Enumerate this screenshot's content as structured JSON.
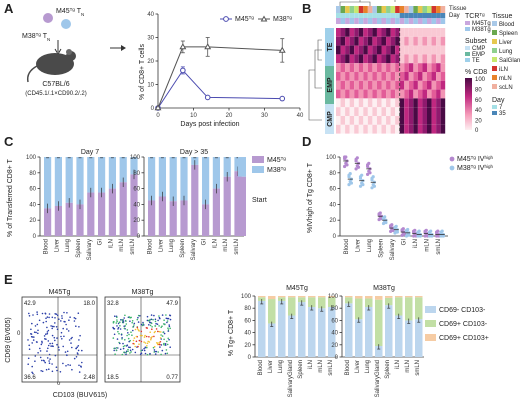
{
  "panels": {
    "A": "A",
    "B": "B",
    "C": "C",
    "D": "D",
    "E": "E"
  },
  "colors": {
    "m45": "#b79ad0",
    "m38": "#9fc7ea",
    "m45_line": "#4b4bb0",
    "m38_line": "#555555",
    "cd69neg": "#bcd6ee",
    "cd69pos103neg": "#c2dfa5",
    "cd69pos103pos": "#f6cca4",
    "heat_high": "#6a1364",
    "heat_mid": "#d94090",
    "heat_low": "#f7c0cc"
  },
  "panel_a": {
    "cells_top": "M45",
    "cells_top_sup": "Tg",
    "cells_top_suffix": " T",
    "cells_top_sub": "N",
    "cells_bottom": "M38",
    "cells_bottom_sup": "Tg",
    "cells_bottom_suffix": " T",
    "cells_bottom_sub": "N",
    "mouse_line1": "C57BL/6",
    "mouse_line2": "(CD45.1/.1×CD90.2/.2)"
  },
  "chart_data": [
    {
      "type": "line",
      "panel": "A",
      "xlabel": "Days post infection",
      "ylabel": "% of CD8+ T cells",
      "xlim": [
        0,
        40
      ],
      "ylim": [
        0,
        40
      ],
      "xticks": [
        0,
        10,
        20,
        30,
        40
      ],
      "yticks": [
        0,
        10,
        20,
        30,
        40
      ],
      "series": [
        {
          "name": "M45Tg",
          "x": [
            0,
            7,
            14,
            35
          ],
          "y": [
            0,
            16,
            4.5,
            4
          ],
          "err": [
            0,
            1.5,
            0.5,
            0.5
          ]
        },
        {
          "name": "M38Tg",
          "x": [
            0,
            7,
            14,
            35
          ],
          "y": [
            0,
            26,
            26,
            24.5
          ],
          "err": [
            0,
            2.5,
            4,
            5
          ]
        }
      ]
    },
    {
      "type": "heatmap",
      "panel": "B",
      "legend_title": "% CD8",
      "legend_ticks": [
        "100",
        "80",
        "60",
        "40",
        "20",
        "0"
      ],
      "annotation_titles": {
        "tissue_row": "Tissue",
        "day_row": "Day",
        "tcr": "TCRTg",
        "tissue": "Tissue",
        "subset": "Subset",
        "day": "Day"
      },
      "tcr_legend": [
        "M45Tg",
        "M38Tg"
      ],
      "subset_legend": [
        "CMP",
        "EMP",
        "TE"
      ],
      "tissue_legend": [
        "Blood",
        "Spleen",
        "Liver",
        "Lung",
        "SalGland",
        "iLN",
        "mLN",
        "scLN"
      ],
      "day_legend": [
        "7",
        "35"
      ],
      "row_groups": [
        "TE",
        "EMP",
        "CMP"
      ]
    },
    {
      "type": "bar",
      "panel": "C",
      "ylabel": "% of Transferred CD8+ T",
      "ylim": [
        0,
        100
      ],
      "yticks": [
        0,
        20,
        40,
        60,
        80,
        100
      ],
      "legend": [
        "M45Tg",
        "M38Tg"
      ],
      "start_label": "Start",
      "categories": [
        "Blood",
        "Liver",
        "Lung",
        "Spleen",
        "Salivary",
        "GI",
        "iLN",
        "mLN",
        "smLN"
      ],
      "subplots": [
        {
          "title": "Day 7",
          "m45": [
            35,
            38,
            42,
            40,
            55,
            55,
            60,
            68,
            78
          ]
        },
        {
          "title": "Day > 35",
          "m45": [
            45,
            50,
            44,
            45,
            90,
            40,
            60,
            75,
            82
          ]
        }
      ],
      "start_value": 75
    },
    {
      "type": "scatter",
      "panel": "D",
      "ylabel": "%IVhigh of Tg CD8+ T",
      "ylim": [
        0,
        100
      ],
      "yticks": [
        0,
        20,
        40,
        60,
        80,
        100
      ],
      "legend": [
        "M45Tg IVhigh",
        "M38Tg IVhigh"
      ],
      "categories": [
        "Blood",
        "Liver",
        "Lung",
        "Spleen",
        "Salivary",
        "GI",
        "iLN",
        "mLN",
        "smLN"
      ],
      "m45_mean": [
        95,
        92,
        85,
        25,
        10,
        5,
        3,
        3,
        2
      ],
      "m38_mean": [
        72,
        70,
        68,
        20,
        8,
        4,
        2,
        2,
        2
      ]
    },
    {
      "type": "scatter",
      "panel": "E-flow",
      "xlabel": "CD103 (BUV615)",
      "ylabel": "CD69 (BV605)",
      "plots": [
        {
          "title": "M45Tg",
          "q_ul": "42.9",
          "q_ur": "18.0",
          "q_ll": "36.6",
          "q_lr": "2.48"
        },
        {
          "title": "M38Tg",
          "q_ul": "32.8",
          "q_ur": "47.9",
          "q_ll": "18.5",
          "q_lr": "0.77"
        }
      ],
      "tick_zero": "0"
    },
    {
      "type": "bar",
      "panel": "E",
      "ylabel": "% Tg+ CD8+ T",
      "ylim": [
        0,
        100
      ],
      "yticks": [
        0,
        20,
        40,
        60,
        80,
        100
      ],
      "categories": [
        "Blood",
        "Liver",
        "Lung",
        "SalivaryGland",
        "Spleen",
        "iLN",
        "mLN",
        "smLN"
      ],
      "legend": [
        "CD69- CD103-",
        "CD69+ CD103-",
        "CD69+ CD103+"
      ],
      "subplots": [
        {
          "title": "M45Tg",
          "cd69neg": [
            92,
            55,
            92,
            68,
            90,
            82,
            80,
            82
          ],
          "cd69pos": [
            6,
            40,
            6,
            30,
            8,
            16,
            18,
            16
          ]
        },
        {
          "title": "M38Tg",
          "cd69neg": [
            88,
            62,
            82,
            18,
            85,
            68,
            60,
            62
          ],
          "cd69pos": [
            10,
            34,
            14,
            76,
            12,
            30,
            38,
            36
          ]
        }
      ]
    }
  ]
}
